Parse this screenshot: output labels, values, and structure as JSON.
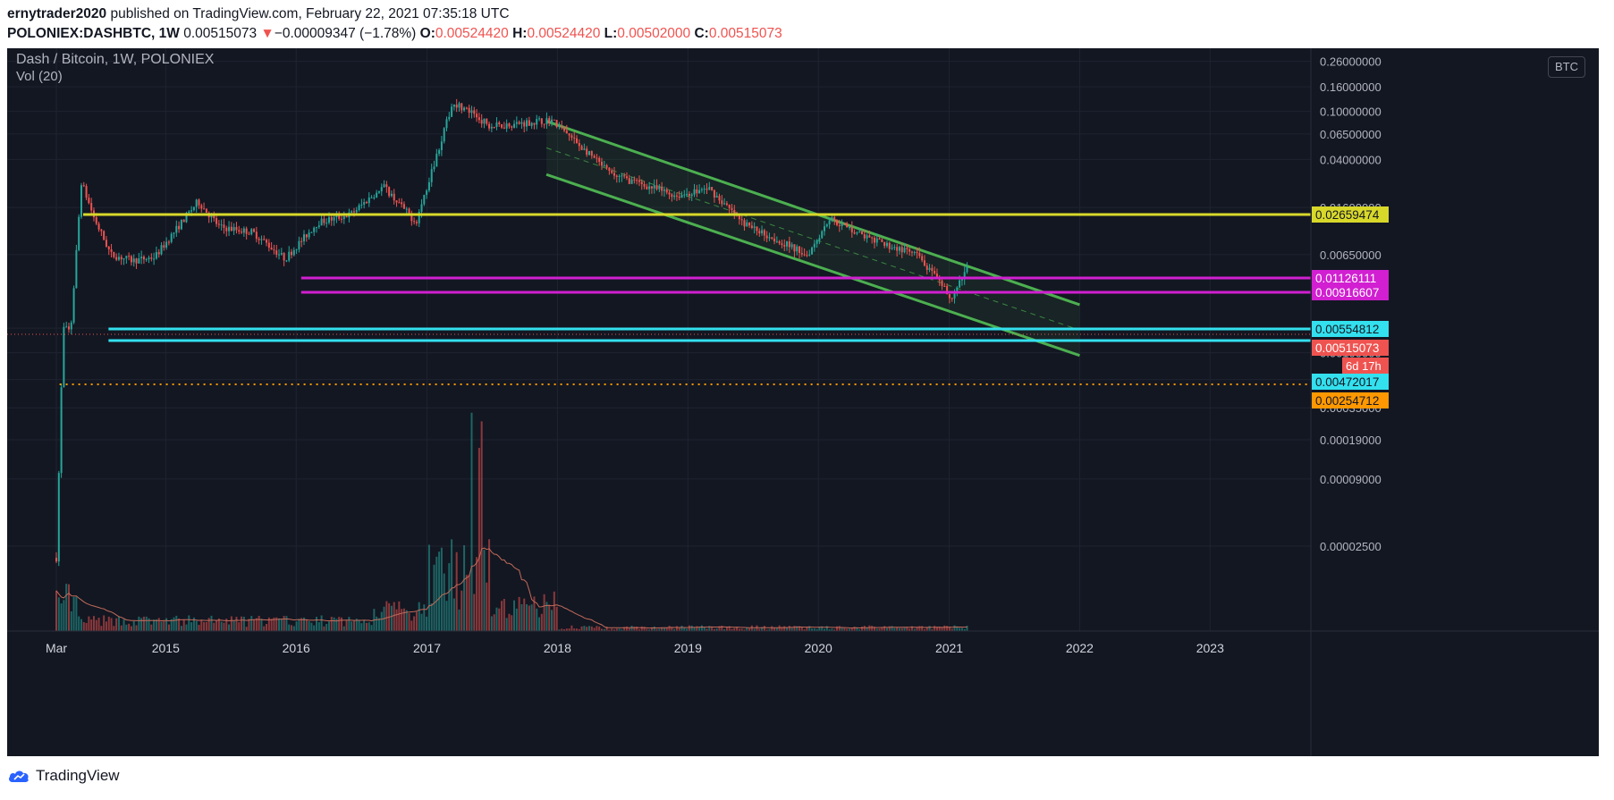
{
  "header": {
    "author": "ernytrader2020",
    "published_text": " published on TradingView.com, February 22, 2021 07:35:18 UTC",
    "symbol": "POLONIEX:DASHBTC, 1W",
    "last": "0.00515073",
    "change_arrow": "▼",
    "change": "−0.00009347 (−1.78%)",
    "o_label": "O:",
    "o_value": "0.00524420",
    "h_label": "H:",
    "h_value": "0.00524420",
    "l_label": "L:",
    "l_value": "0.00502000",
    "c_label": "C:",
    "c_value": "0.00515073"
  },
  "legend": {
    "title": "Dash / Bitcoin, 1W, POLONIEX",
    "volume": "Vol (20)"
  },
  "currency_badge": "BTC",
  "footer": {
    "logo_text": "TradingView"
  },
  "colors": {
    "background": "#131722",
    "grid": "#1f2330",
    "up": "#26a69a",
    "down": "#ef5350",
    "yellow_level": "#d8d82a",
    "magenta_level": "#d11fd1",
    "cyan_level": "#33e0ee",
    "orange_dotted": "#ff9800",
    "channel": "#4caf50",
    "volume_ma": "#c26b5a"
  },
  "chart_data": {
    "type": "candlestick",
    "title": "Dash / Bitcoin, 1W, POLONIEX",
    "yscale": "log",
    "ylabel_unit": "BTC",
    "y_ticks": [
      "0.26000000",
      "0.16000000",
      "0.10000000",
      "0.06500000",
      "0.04000000",
      "0.01600000",
      "0.00650000",
      "0.00160000",
      "0.00100000",
      "0.00060000",
      "0.00035000",
      "0.00019000",
      "0.00009000",
      "0.00002500"
    ],
    "x_ticks": [
      "Mar",
      "2015",
      "2016",
      "2017",
      "2018",
      "2019",
      "2020",
      "2021",
      "2022",
      "2023"
    ],
    "price_path": [
      {
        "date": "2014-03-01",
        "price": 2e-05
      },
      {
        "date": "2014-03-20",
        "price": 0.0016
      },
      {
        "date": "2014-04-10",
        "price": 0.0015
      },
      {
        "date": "2014-05-10",
        "price": 0.026
      },
      {
        "date": "2014-06-15",
        "price": 0.013
      },
      {
        "date": "2014-08-01",
        "price": 0.0065
      },
      {
        "date": "2014-10-01",
        "price": 0.0058
      },
      {
        "date": "2014-12-01",
        "price": 0.0062
      },
      {
        "date": "2015-04-01",
        "price": 0.018
      },
      {
        "date": "2015-06-01",
        "price": 0.011
      },
      {
        "date": "2015-09-01",
        "price": 0.01
      },
      {
        "date": "2015-12-01",
        "price": 0.006
      },
      {
        "date": "2016-03-01",
        "price": 0.012
      },
      {
        "date": "2016-06-01",
        "price": 0.014
      },
      {
        "date": "2016-09-01",
        "price": 0.024
      },
      {
        "date": "2016-12-01",
        "price": 0.012
      },
      {
        "date": "2017-03-15",
        "price": 0.12
      },
      {
        "date": "2017-07-01",
        "price": 0.075
      },
      {
        "date": "2017-12-15",
        "price": 0.085
      },
      {
        "date": "2018-06-01",
        "price": 0.03
      },
      {
        "date": "2018-12-01",
        "price": 0.02
      },
      {
        "date": "2019-03-01",
        "price": 0.023
      },
      {
        "date": "2019-06-01",
        "price": 0.012
      },
      {
        "date": "2019-12-01",
        "price": 0.0065
      },
      {
        "date": "2020-02-01",
        "price": 0.013
      },
      {
        "date": "2020-06-01",
        "price": 0.0085
      },
      {
        "date": "2020-10-01",
        "price": 0.0065
      },
      {
        "date": "2021-01-10",
        "price": 0.0028
      },
      {
        "date": "2021-02-22",
        "price": 0.00515073
      }
    ],
    "horizontal_levels": [
      {
        "price": 0.02659474,
        "label": "0.02659474",
        "color": "#d8d82a",
        "text_color": "#131722"
      },
      {
        "price": 0.01126111,
        "label": "0.01126111",
        "color": "#d11fd1",
        "text_color": "#ffffff"
      },
      {
        "price": 0.00916607,
        "label": "0.00916607",
        "color": "#d11fd1",
        "text_color": "#ffffff"
      },
      {
        "price": 0.00554812,
        "label": "0.00554812",
        "color": "#33e0ee",
        "text_color": "#131722"
      },
      {
        "price": 0.00472017,
        "label": "0.00472017",
        "color": "#33e0ee",
        "text_color": "#131722"
      },
      {
        "price": 0.00254712,
        "label": "0.00254712",
        "color": "#ff9800",
        "text_color": "#131722",
        "dotted": true
      }
    ],
    "last_price": {
      "value": "0.00515073",
      "countdown": "6d 17h",
      "color": "#ef5350"
    },
    "channel": {
      "upper": [
        {
          "date": "2017-12-01",
          "price": 0.083
        },
        {
          "date": "2022-01-01",
          "price": 0.0025
        }
      ],
      "lower": [
        {
          "date": "2017-12-01",
          "price": 0.03
        },
        {
          "date": "2022-01-01",
          "price": 0.00095
        }
      ]
    },
    "volume_indicator": "Vol (20)",
    "grid": true
  }
}
